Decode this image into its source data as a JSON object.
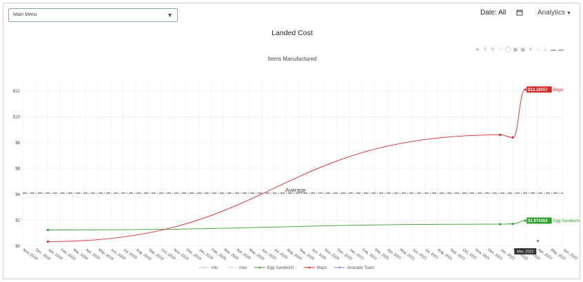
{
  "header": {
    "menu_label": "Main Menu",
    "date_filter": "Date: All",
    "analytics_label": "Analytics"
  },
  "icons": {
    "menu_arrow": "triangle-down-icon",
    "calendar": "calendar-icon",
    "analytics_caret": "caret-down-icon",
    "modebar": [
      "camera-icon",
      "zoom-icon",
      "pan-icon",
      "box-select-icon",
      "lasso-icon",
      "zoom-in-icon",
      "zoom-out-icon",
      "autoscale-icon",
      "reset-axes-icon",
      "spike-lines-icon",
      "hover-closest-icon",
      "hover-compare-icon"
    ]
  },
  "chart_data": {
    "type": "line",
    "title": "Landed Cost",
    "subtitle": "Items Manufactured",
    "x": [
      "Nov, 2018",
      "Dec, 2018",
      "Jan, 2019",
      "Feb, 2019",
      "Mar, 2019",
      "Apr, 2019",
      "May, 2019",
      "Jun, 2019",
      "Jul, 2019",
      "Aug, 2019",
      "Sep, 2019",
      "Oct, 2019",
      "Nov, 2019",
      "Dec, 2019",
      "Jan, 2020",
      "Feb, 2020",
      "Mar, 2020",
      "Apr, 2020",
      "May, 2020",
      "Jun, 2020",
      "Jul, 2020",
      "Aug, 2020",
      "Sep, 2020",
      "Oct, 2020",
      "Nov, 2020",
      "Dec, 2020",
      "Jan, 2021",
      "Feb, 2021",
      "Mar, 2021",
      "Apr, 2021",
      "May, 2021",
      "Jun, 2021",
      "Jul, 2021",
      "Aug, 2021",
      "Sep, 2021",
      "Oct, 2021",
      "Nov, 2021",
      "Dec, 2021",
      "Jan, 2022",
      "Feb, 2022",
      "Mar, 2022",
      "Apr, 2022",
      "May, 2022",
      "Jun, 2022"
    ],
    "y_ticks": [
      "$0",
      "$2",
      "$4",
      "$6",
      "$8",
      "$10",
      "$12"
    ],
    "ylim": [
      0,
      13
    ],
    "grid": true,
    "legend_position": "bottom",
    "average": {
      "label": "Average",
      "value": 4.1,
      "color": "#555555"
    },
    "hover_x_label": "Mar, 2022",
    "series": [
      {
        "name": "min",
        "color": "#cccccc",
        "points": []
      },
      {
        "name": "max",
        "color": "#dddddd",
        "points": []
      },
      {
        "name": "Egg Sandwich",
        "color": "#2ca02c",
        "points": [
          {
            "x": "Jan, 2019",
            "y": 1.25
          },
          {
            "x": "Jan, 2022",
            "y": 1.7
          },
          {
            "x": "Feb, 2022",
            "y": 1.72
          },
          {
            "x": "Mar, 2022",
            "y": 1.974353
          }
        ],
        "end_value_label": "$1.974353"
      },
      {
        "name": "Mayo",
        "color": "#d62728",
        "points": [
          {
            "x": "Jan, 2019",
            "y": 0.35
          },
          {
            "x": "Jan, 2022",
            "y": 8.6
          },
          {
            "x": "Feb, 2022",
            "y": 8.4
          },
          {
            "x": "Mar, 2022",
            "y": 12.10557
          }
        ],
        "end_value_label": "$12.10557"
      },
      {
        "name": "Avocado Toast",
        "color": "#7f7fd6",
        "points": [
          {
            "x": "Apr, 2022",
            "y": 0.4
          }
        ]
      }
    ]
  }
}
